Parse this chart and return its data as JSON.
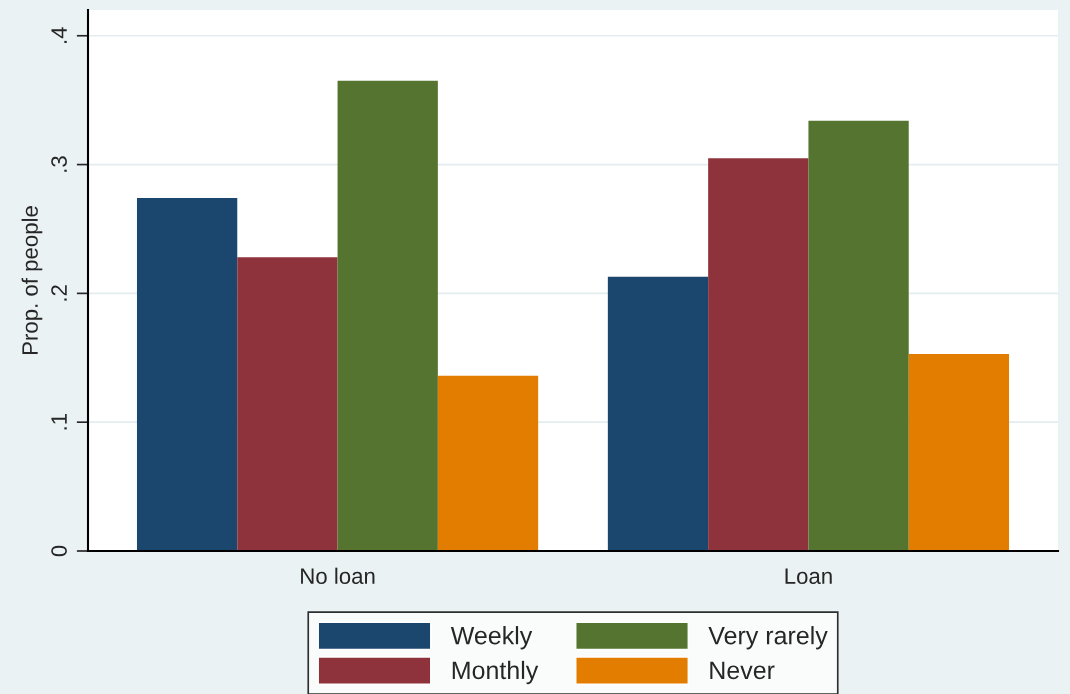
{
  "chart_data": {
    "type": "bar",
    "ylabel": "Prop. of people",
    "categories": [
      "No loan",
      "Loan"
    ],
    "series": [
      {
        "name": "Weekly",
        "color": "#1b466e",
        "values": [
          0.274,
          0.213
        ]
      },
      {
        "name": "Monthly",
        "color": "#8e333c",
        "values": [
          0.228,
          0.305
        ]
      },
      {
        "name": "Very rarely",
        "color": "#557430",
        "values": [
          0.365,
          0.334
        ]
      },
      {
        "name": "Never",
        "color": "#e27d00",
        "values": [
          0.136,
          0.153
        ]
      }
    ],
    "ylim": [
      0,
      0.42
    ],
    "yticks": [
      {
        "value": 0,
        "label": "0"
      },
      {
        "value": 0.1,
        "label": ".1"
      },
      {
        "value": 0.2,
        "label": ".2"
      },
      {
        "value": 0.3,
        "label": ".3"
      },
      {
        "value": 0.4,
        "label": ".4"
      }
    ],
    "grid": "y",
    "legend": "bottom"
  }
}
